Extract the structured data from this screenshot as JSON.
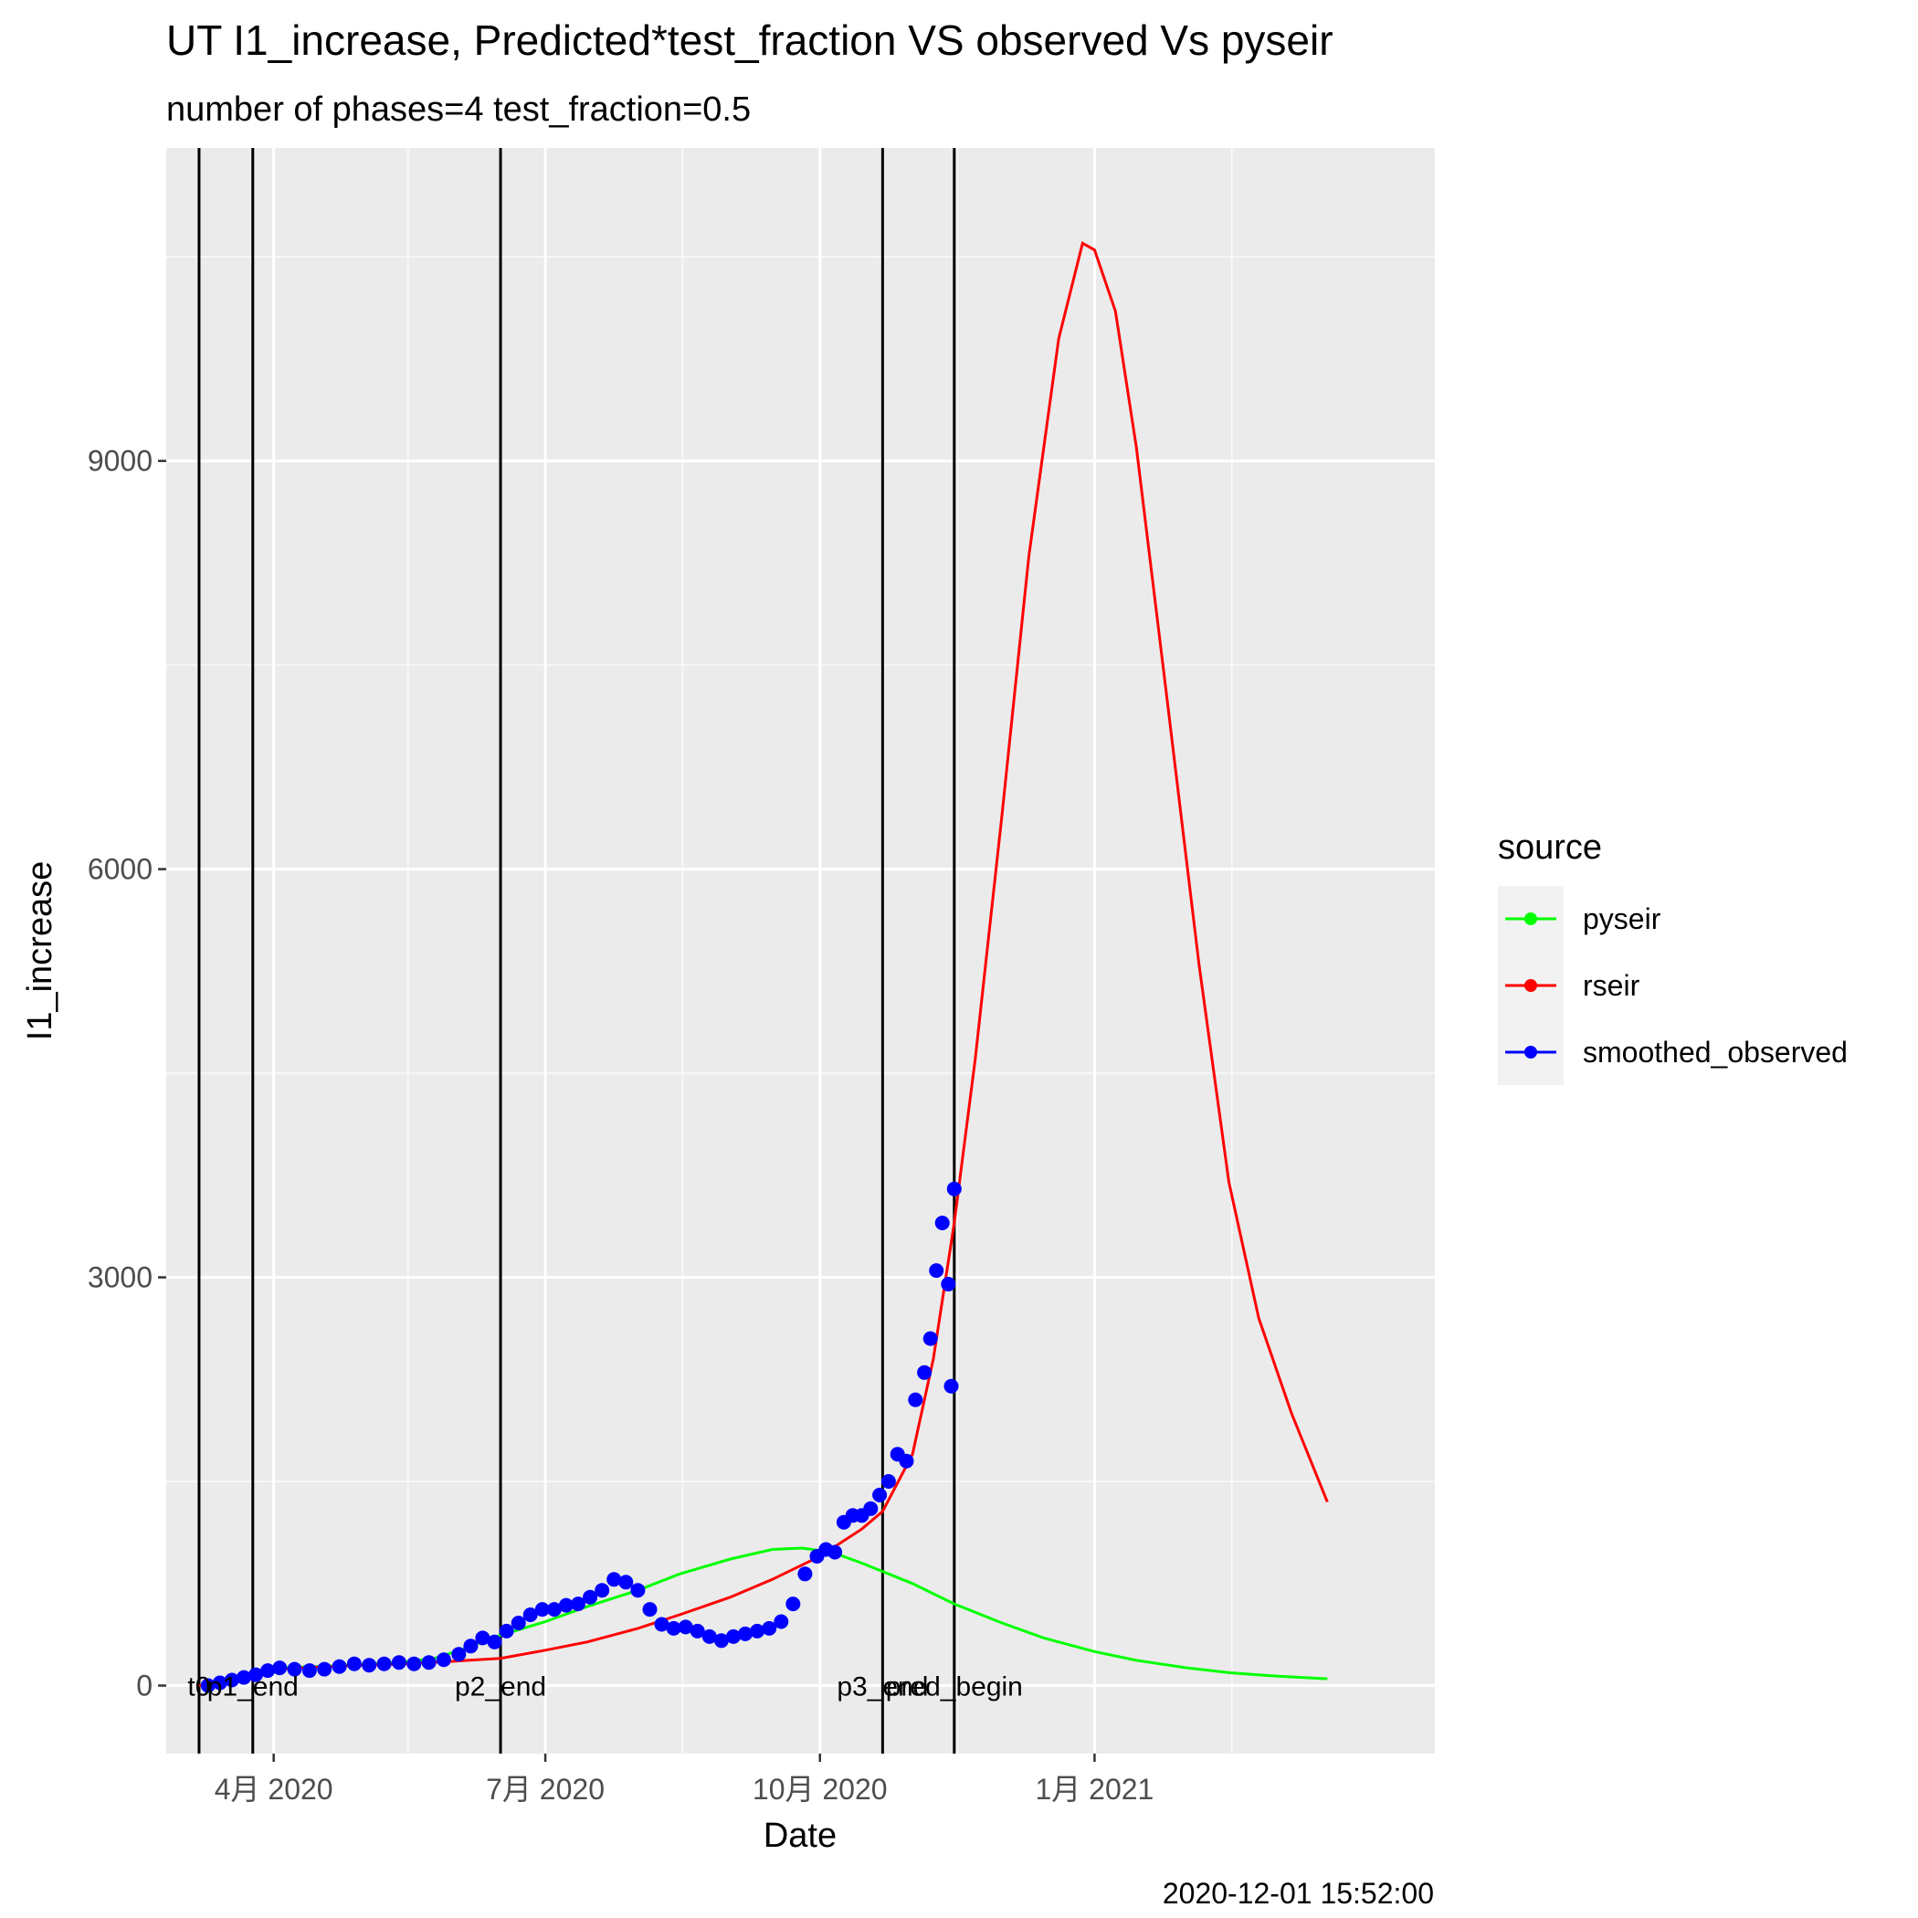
{
  "chart_data": {
    "type": "line",
    "title": "UT I1_increase, Predicted*test_fraction VS observed Vs pyseir",
    "subtitle": "number of phases=4   test_fraction=0.5",
    "xlabel": "Date",
    "ylabel": "I1_increase",
    "caption": "2020-12-01 15:52:00",
    "xlim": [
      "2020-02-25",
      "2021-04-25"
    ],
    "ylim": [
      -500,
      11300
    ],
    "grid": true,
    "y_ticks": [
      {
        "value": 0,
        "label": "0"
      },
      {
        "value": 3000,
        "label": "3000"
      },
      {
        "value": 6000,
        "label": "6000"
      },
      {
        "value": 9000,
        "label": "9000"
      }
    ],
    "x_ticks": [
      {
        "date": "2020-04-01",
        "label": "4月 2020"
      },
      {
        "date": "2020-07-01",
        "label": "7月 2020"
      },
      {
        "date": "2020-10-01",
        "label": "10月 2020"
      },
      {
        "date": "2021-01-01",
        "label": "1月 2021"
      }
    ],
    "legend": {
      "title": "source",
      "position": "right",
      "entries": [
        {
          "name": "pyseir",
          "color": "#00ff00"
        },
        {
          "name": "rseir",
          "color": "#ff0000"
        },
        {
          "name": "smoothed_observed",
          "color": "#0000ff"
        }
      ]
    },
    "vlines": [
      {
        "date": "2020-03-07",
        "label": "t0"
      },
      {
        "date": "2020-03-25",
        "label": "p1_end"
      },
      {
        "date": "2020-06-16",
        "label": "p2_end"
      },
      {
        "date": "2020-10-22",
        "label": "p3_end"
      },
      {
        "date": "2020-11-15",
        "label": "pred_begin"
      }
    ],
    "series": [
      {
        "name": "pyseir",
        "color": "#00ff00",
        "mark": "line",
        "points": [
          [
            "2020-03-07",
            0
          ],
          [
            "2020-03-20",
            60
          ],
          [
            "2020-04-01",
            130
          ],
          [
            "2020-04-15",
            140
          ],
          [
            "2020-05-01",
            155
          ],
          [
            "2020-05-15",
            175
          ],
          [
            "2020-05-25",
            200
          ],
          [
            "2020-06-05",
            280
          ],
          [
            "2020-06-16",
            370
          ],
          [
            "2020-07-01",
            470
          ],
          [
            "2020-07-15",
            580
          ],
          [
            "2020-08-01",
            700
          ],
          [
            "2020-08-15",
            820
          ],
          [
            "2020-09-01",
            930
          ],
          [
            "2020-09-15",
            1000
          ],
          [
            "2020-09-25",
            1010
          ],
          [
            "2020-10-05",
            980
          ],
          [
            "2020-10-15",
            900
          ],
          [
            "2020-11-01",
            750
          ],
          [
            "2020-11-15",
            600
          ],
          [
            "2020-12-01",
            460
          ],
          [
            "2020-12-15",
            350
          ],
          [
            "2021-01-01",
            250
          ],
          [
            "2021-01-15",
            185
          ],
          [
            "2021-02-01",
            130
          ],
          [
            "2021-02-15",
            95
          ],
          [
            "2021-03-01",
            72
          ],
          [
            "2021-03-15",
            55
          ],
          [
            "2021-03-20",
            50
          ]
        ]
      },
      {
        "name": "rseir",
        "color": "#ff0000",
        "mark": "line",
        "points": [
          [
            "2020-03-07",
            0
          ],
          [
            "2020-03-20",
            50
          ],
          [
            "2020-04-01",
            120
          ],
          [
            "2020-04-15",
            135
          ],
          [
            "2020-05-01",
            150
          ],
          [
            "2020-05-15",
            160
          ],
          [
            "2020-06-01",
            180
          ],
          [
            "2020-06-16",
            200
          ],
          [
            "2020-07-01",
            260
          ],
          [
            "2020-07-15",
            320
          ],
          [
            "2020-08-01",
            420
          ],
          [
            "2020-08-15",
            520
          ],
          [
            "2020-09-01",
            650
          ],
          [
            "2020-09-15",
            780
          ],
          [
            "2020-10-01",
            950
          ],
          [
            "2020-10-15",
            1150
          ],
          [
            "2020-10-22",
            1280
          ],
          [
            "2020-11-01",
            1700
          ],
          [
            "2020-11-08",
            2400
          ],
          [
            "2020-11-15",
            3400
          ],
          [
            "2020-11-22",
            4600
          ],
          [
            "2020-12-01",
            6400
          ],
          [
            "2020-12-10",
            8300
          ],
          [
            "2020-12-20",
            9900
          ],
          [
            "2020-12-28",
            10600
          ],
          [
            "2021-01-01",
            10550
          ],
          [
            "2021-01-08",
            10100
          ],
          [
            "2021-01-15",
            9100
          ],
          [
            "2021-01-25",
            7300
          ],
          [
            "2021-02-05",
            5300
          ],
          [
            "2021-02-15",
            3700
          ],
          [
            "2021-02-25",
            2700
          ],
          [
            "2021-03-08",
            2000
          ],
          [
            "2021-03-20",
            1350
          ]
        ]
      },
      {
        "name": "smoothed_observed",
        "color": "#0000ff",
        "mark": "point",
        "points": [
          [
            "2020-03-10",
            0
          ],
          [
            "2020-03-14",
            20
          ],
          [
            "2020-03-18",
            40
          ],
          [
            "2020-03-22",
            60
          ],
          [
            "2020-03-26",
            80
          ],
          [
            "2020-03-30",
            110
          ],
          [
            "2020-04-03",
            130
          ],
          [
            "2020-04-08",
            120
          ],
          [
            "2020-04-13",
            110
          ],
          [
            "2020-04-18",
            120
          ],
          [
            "2020-04-23",
            140
          ],
          [
            "2020-04-28",
            160
          ],
          [
            "2020-05-03",
            150
          ],
          [
            "2020-05-08",
            160
          ],
          [
            "2020-05-13",
            170
          ],
          [
            "2020-05-18",
            160
          ],
          [
            "2020-05-23",
            170
          ],
          [
            "2020-05-28",
            190
          ],
          [
            "2020-06-02",
            230
          ],
          [
            "2020-06-06",
            290
          ],
          [
            "2020-06-10",
            350
          ],
          [
            "2020-06-14",
            320
          ],
          [
            "2020-06-18",
            400
          ],
          [
            "2020-06-22",
            460
          ],
          [
            "2020-06-26",
            520
          ],
          [
            "2020-06-30",
            560
          ],
          [
            "2020-07-04",
            560
          ],
          [
            "2020-07-08",
            590
          ],
          [
            "2020-07-12",
            600
          ],
          [
            "2020-07-16",
            650
          ],
          [
            "2020-07-20",
            700
          ],
          [
            "2020-07-24",
            780
          ],
          [
            "2020-07-28",
            760
          ],
          [
            "2020-08-01",
            700
          ],
          [
            "2020-08-05",
            560
          ],
          [
            "2020-08-09",
            450
          ],
          [
            "2020-08-13",
            420
          ],
          [
            "2020-08-17",
            430
          ],
          [
            "2020-08-21",
            400
          ],
          [
            "2020-08-25",
            360
          ],
          [
            "2020-08-29",
            330
          ],
          [
            "2020-09-02",
            360
          ],
          [
            "2020-09-06",
            380
          ],
          [
            "2020-09-10",
            400
          ],
          [
            "2020-09-14",
            420
          ],
          [
            "2020-09-18",
            470
          ],
          [
            "2020-09-22",
            600
          ],
          [
            "2020-09-26",
            820
          ],
          [
            "2020-09-30",
            950
          ],
          [
            "2020-10-03",
            1000
          ],
          [
            "2020-10-06",
            980
          ],
          [
            "2020-10-09",
            1200
          ],
          [
            "2020-10-12",
            1250
          ],
          [
            "2020-10-15",
            1250
          ],
          [
            "2020-10-18",
            1300
          ],
          [
            "2020-10-21",
            1400
          ],
          [
            "2020-10-24",
            1500
          ],
          [
            "2020-10-27",
            1700
          ],
          [
            "2020-10-30",
            1650
          ],
          [
            "2020-11-02",
            2100
          ],
          [
            "2020-11-05",
            2300
          ],
          [
            "2020-11-07",
            2550
          ],
          [
            "2020-11-09",
            3050
          ],
          [
            "2020-11-11",
            3400
          ],
          [
            "2020-11-13",
            2950
          ],
          [
            "2020-11-14",
            2200
          ],
          [
            "2020-11-15",
            3650
          ]
        ]
      }
    ]
  }
}
